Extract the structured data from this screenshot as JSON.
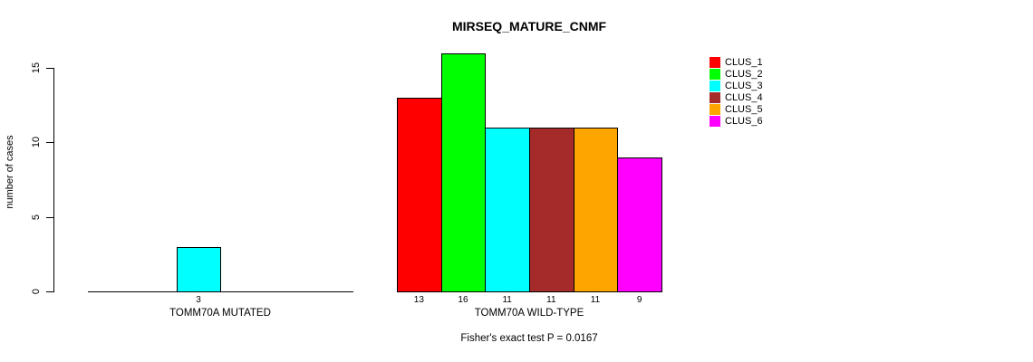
{
  "title": "MIRSEQ_MATURE_CNMF",
  "y_axis": {
    "label": "number of cases",
    "ticks": [
      0,
      5,
      10,
      15
    ]
  },
  "legend": {
    "items": [
      {
        "label": "CLUS_1",
        "color": "#FF0000"
      },
      {
        "label": "CLUS_2",
        "color": "#00FF00"
      },
      {
        "label": "CLUS_3",
        "color": "#00FFFF"
      },
      {
        "label": "CLUS_4",
        "color": "#A52A2A"
      },
      {
        "label": "CLUS_5",
        "color": "#FFA500"
      },
      {
        "label": "CLUS_6",
        "color": "#FF00FF"
      }
    ]
  },
  "chart_data": {
    "type": "bar",
    "title": "MIRSEQ_MATURE_CNMF",
    "xlabel": "",
    "ylabel": "number of cases",
    "ylim": [
      0,
      16
    ],
    "yticks": [
      0,
      5,
      10,
      15
    ],
    "grid": false,
    "legend_position": "right",
    "categories": [
      "CLUS_1",
      "CLUS_2",
      "CLUS_3",
      "CLUS_4",
      "CLUS_5",
      "CLUS_6"
    ],
    "colors": [
      "#FF0000",
      "#00FF00",
      "#00FFFF",
      "#A52A2A",
      "#FFA500",
      "#FF00FF"
    ],
    "groups": [
      {
        "label": "TOMM70A MUTATED",
        "values": [
          0,
          0,
          3,
          0,
          0,
          0
        ]
      },
      {
        "label": "TOMM70A WILD-TYPE",
        "values": [
          13,
          16,
          11,
          11,
          11,
          9
        ]
      }
    ],
    "annotation": "Fisher's exact test P = 0.0167"
  }
}
